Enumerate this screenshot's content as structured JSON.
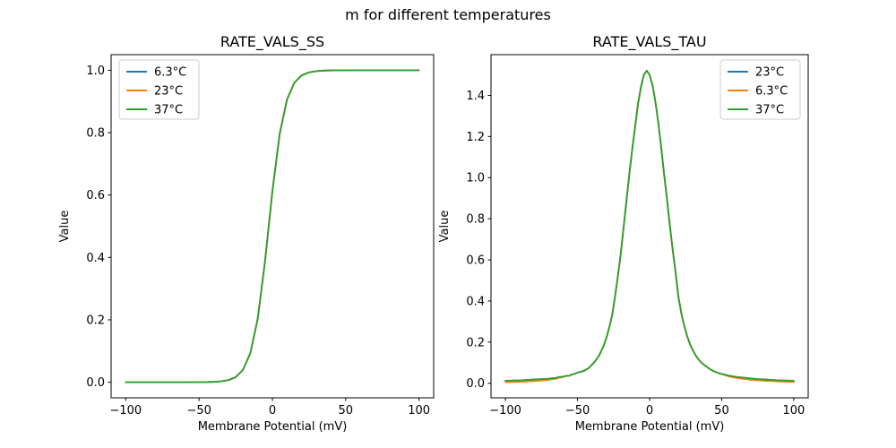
{
  "figure": {
    "suptitle": "m for different temperatures",
    "background": "#ffffff",
    "text_color": "#000000",
    "spine_color": "#000000",
    "legend_border_color": "#cccccc",
    "series_colors": {
      "blue": "#1f77b4",
      "orange": "#ff7f0e",
      "green": "#2ca02c"
    }
  },
  "chart_data": [
    {
      "id": "ss",
      "type": "line",
      "title": "RATE_VALS_SS",
      "xlabel": "Membrane Potential (mV)",
      "ylabel": "Value",
      "xlim": [
        -110,
        110
      ],
      "ylim": [
        -0.05,
        1.05
      ],
      "xticks": [
        -100,
        -50,
        0,
        50,
        100
      ],
      "xtick_labels": [
        "−100",
        "−50",
        "0",
        "50",
        "100"
      ],
      "yticks": [
        0.0,
        0.2,
        0.4,
        0.6,
        0.8,
        1.0
      ],
      "ytick_labels": [
        "0.0",
        "0.2",
        "0.4",
        "0.6",
        "0.8",
        "1.0"
      ],
      "grid": false,
      "legend_position": "upper-left",
      "x": [
        -100,
        -95,
        -90,
        -85,
        -80,
        -75,
        -70,
        -65,
        -60,
        -55,
        -50,
        -45,
        -40,
        -35,
        -30,
        -25,
        -20,
        -15,
        -10,
        -5,
        0,
        5,
        10,
        15,
        20,
        25,
        30,
        35,
        40,
        45,
        50,
        55,
        60,
        65,
        70,
        75,
        80,
        85,
        90,
        95,
        100
      ],
      "series": [
        {
          "name": "6.3°C",
          "color": "#1f77b4",
          "y": [
            0,
            0,
            0,
            0,
            0,
            0,
            0,
            0,
            0,
            0.0001,
            0.0002,
            0.0004,
            0.0011,
            0.0027,
            0.0067,
            0.0164,
            0.0399,
            0.0935,
            0.2036,
            0.3883,
            0.6117,
            0.7964,
            0.9065,
            0.9601,
            0.9836,
            0.9933,
            0.9973,
            0.9989,
            0.9996,
            0.9998,
            0.9999,
            1,
            1,
            1,
            1,
            1,
            1,
            1,
            1,
            1,
            1
          ]
        },
        {
          "name": "23°C",
          "color": "#ff7f0e",
          "y": [
            0,
            0,
            0,
            0,
            0,
            0,
            0,
            0,
            0,
            0.0001,
            0.0002,
            0.0004,
            0.0011,
            0.0027,
            0.0067,
            0.0164,
            0.0399,
            0.0935,
            0.2036,
            0.3883,
            0.6117,
            0.7964,
            0.9065,
            0.9601,
            0.9836,
            0.9933,
            0.9973,
            0.9989,
            0.9996,
            0.9998,
            0.9999,
            1,
            1,
            1,
            1,
            1,
            1,
            1,
            1,
            1,
            1
          ]
        },
        {
          "name": "37°C",
          "color": "#2ca02c",
          "y": [
            0,
            0,
            0,
            0,
            0,
            0,
            0,
            0,
            0,
            0.0001,
            0.0002,
            0.0004,
            0.0011,
            0.0027,
            0.0067,
            0.0164,
            0.0399,
            0.0935,
            0.2036,
            0.3883,
            0.6117,
            0.7964,
            0.9065,
            0.9601,
            0.9836,
            0.9933,
            0.9973,
            0.9989,
            0.9996,
            0.9998,
            0.9999,
            1,
            1,
            1,
            1,
            1,
            1,
            1,
            1,
            1,
            1
          ]
        }
      ]
    },
    {
      "id": "tau",
      "type": "line",
      "title": "RATE_VALS_TAU",
      "xlabel": "Membrane Potential (mV)",
      "ylabel": "Value",
      "xlim": [
        -110,
        110
      ],
      "ylim": [
        -0.071,
        1.598
      ],
      "xticks": [
        -100,
        -50,
        0,
        50,
        100
      ],
      "xtick_labels": [
        "−100",
        "−50",
        "0",
        "50",
        "100"
      ],
      "yticks": [
        0.0,
        0.2,
        0.4,
        0.6,
        0.8,
        1.0,
        1.2,
        1.4
      ],
      "ytick_labels": [
        "0.0",
        "0.2",
        "0.4",
        "0.6",
        "0.8",
        "1.0",
        "1.2",
        "1.4"
      ],
      "grid": false,
      "legend_position": "upper-right",
      "x": [
        -100,
        -95,
        -90,
        -85,
        -80,
        -75,
        -70,
        -67,
        -65,
        -63,
        -61,
        -58,
        -56,
        -54,
        -52,
        -50,
        -48,
        -45,
        -42,
        -40,
        -38,
        -35,
        -32,
        -30,
        -28,
        -26,
        -24,
        -22,
        -20,
        -18,
        -16,
        -14,
        -12,
        -10,
        -8,
        -6,
        -4,
        -2,
        0,
        2,
        4,
        6,
        8,
        10,
        12,
        14,
        16,
        18,
        20,
        22,
        24,
        26,
        28,
        30,
        32,
        34,
        36,
        38,
        40,
        42,
        44,
        46,
        48,
        50,
        55,
        60,
        65,
        70,
        75,
        80,
        85,
        90,
        95,
        100
      ],
      "series": [
        {
          "name": "23°C",
          "color": "#1f77b4",
          "y": [
            0.012,
            0.013,
            0.014,
            0.016,
            0.018,
            0.02,
            0.022,
            0.025,
            0.025,
            0.03,
            0.03,
            0.036,
            0.036,
            0.042,
            0.046,
            0.052,
            0.055,
            0.062,
            0.075,
            0.09,
            0.105,
            0.135,
            0.18,
            0.22,
            0.27,
            0.33,
            0.42,
            0.52,
            0.63,
            0.76,
            0.89,
            1.02,
            1.14,
            1.25,
            1.36,
            1.44,
            1.5,
            1.52,
            1.5,
            1.45,
            1.37,
            1.27,
            1.15,
            1.02,
            0.9,
            0.77,
            0.65,
            0.54,
            0.42,
            0.34,
            0.28,
            0.23,
            0.19,
            0.16,
            0.135,
            0.115,
            0.1,
            0.088,
            0.078,
            0.068,
            0.06,
            0.054,
            0.049,
            0.045,
            0.037,
            0.031,
            0.027,
            0.023,
            0.02,
            0.018,
            0.016,
            0.014,
            0.013,
            0.012
          ]
        },
        {
          "name": "6.3°C",
          "color": "#ff7f0e",
          "y": [
            0.005,
            0.006,
            0.007,
            0.009,
            0.011,
            0.013,
            0.016,
            0.02,
            0.021,
            0.027,
            0.028,
            0.035,
            0.036,
            0.042,
            0.046,
            0.052,
            0.055,
            0.062,
            0.075,
            0.09,
            0.105,
            0.135,
            0.18,
            0.22,
            0.27,
            0.33,
            0.42,
            0.52,
            0.63,
            0.76,
            0.89,
            1.02,
            1.14,
            1.25,
            1.36,
            1.44,
            1.5,
            1.52,
            1.5,
            1.45,
            1.37,
            1.27,
            1.15,
            1.02,
            0.9,
            0.77,
            0.65,
            0.54,
            0.42,
            0.34,
            0.28,
            0.23,
            0.19,
            0.16,
            0.135,
            0.115,
            0.1,
            0.088,
            0.078,
            0.068,
            0.06,
            0.054,
            0.049,
            0.045,
            0.033,
            0.026,
            0.021,
            0.017,
            0.014,
            0.012,
            0.01,
            0.008,
            0.007,
            0.006
          ]
        },
        {
          "name": "37°C",
          "color": "#2ca02c",
          "y": [
            0.012,
            0.013,
            0.014,
            0.016,
            0.018,
            0.02,
            0.022,
            0.025,
            0.025,
            0.03,
            0.03,
            0.036,
            0.036,
            0.042,
            0.046,
            0.052,
            0.055,
            0.062,
            0.075,
            0.09,
            0.105,
            0.135,
            0.18,
            0.22,
            0.27,
            0.33,
            0.42,
            0.52,
            0.63,
            0.76,
            0.89,
            1.02,
            1.14,
            1.25,
            1.36,
            1.44,
            1.5,
            1.52,
            1.5,
            1.45,
            1.37,
            1.27,
            1.15,
            1.02,
            0.9,
            0.77,
            0.65,
            0.54,
            0.42,
            0.34,
            0.28,
            0.23,
            0.19,
            0.16,
            0.135,
            0.115,
            0.1,
            0.088,
            0.078,
            0.068,
            0.06,
            0.054,
            0.049,
            0.045,
            0.037,
            0.031,
            0.027,
            0.023,
            0.02,
            0.018,
            0.016,
            0.014,
            0.013,
            0.012
          ]
        }
      ]
    }
  ]
}
